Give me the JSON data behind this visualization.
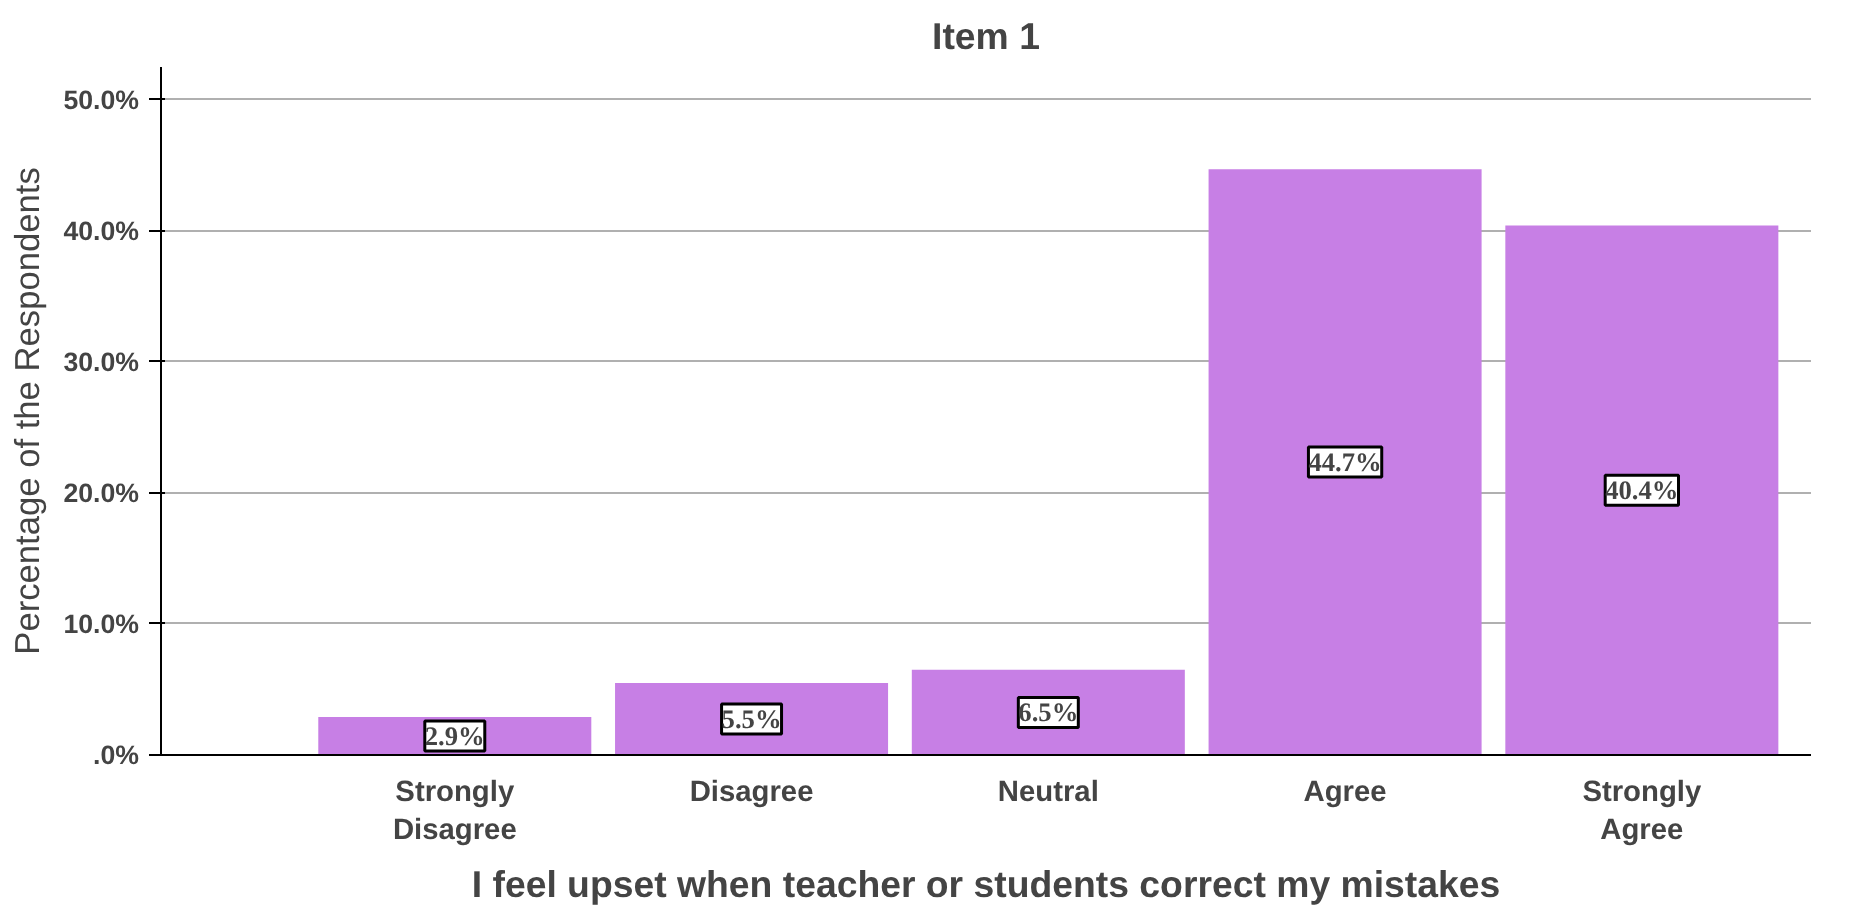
{
  "chart_data": {
    "type": "bar",
    "title": "Item 1",
    "xlabel": "I feel upset when teacher or students correct my mistakes",
    "ylabel": "Percentage of the Respondents",
    "categories": [
      "Strongly Disagree",
      "Disagree",
      "Neutral",
      "Agree",
      "Strongly Agree"
    ],
    "values": [
      2.9,
      5.5,
      6.5,
      44.7,
      40.4
    ],
    "value_labels": [
      "2.9%",
      "5.5%",
      "6.5%",
      "44.7%",
      "40.4%"
    ],
    "color": "#c77fe5",
    "ylim": [
      0,
      52.5
    ],
    "yticks": [
      {
        "value": 0,
        "label": ".0%"
      },
      {
        "value": 10,
        "label": "10.0%"
      },
      {
        "value": 20,
        "label": "20.0%"
      },
      {
        "value": 30,
        "label": "30.0%"
      },
      {
        "value": 40,
        "label": "40.0%"
      },
      {
        "value": 50,
        "label": "50.0%"
      }
    ],
    "grid": "y"
  }
}
